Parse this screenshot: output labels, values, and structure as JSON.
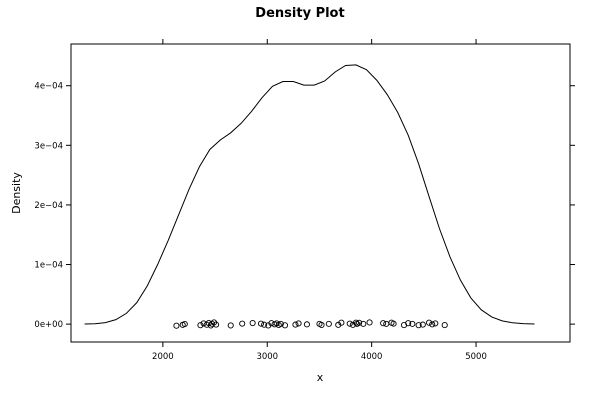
{
  "chart_data": {
    "type": "line",
    "title": "Density Plot",
    "xlabel": "x",
    "ylabel": "Density",
    "xlim": [
      1120,
      5900
    ],
    "ylim": [
      -3e-05,
      0.00047
    ],
    "grid": false,
    "legend": "none",
    "colors": {
      "line": "#000000",
      "points": "#000000",
      "frame": "#000000"
    },
    "x_ticks": [
      {
        "value": 2000,
        "label": "2000"
      },
      {
        "value": 3000,
        "label": "3000"
      },
      {
        "value": 4000,
        "label": "4000"
      },
      {
        "value": 5000,
        "label": "5000"
      }
    ],
    "y_ticks": [
      {
        "value": 0,
        "label": "0e+00"
      },
      {
        "value": 0.0001,
        "label": "1e−04"
      },
      {
        "value": 0.0002,
        "label": "2e−04"
      },
      {
        "value": 0.0003,
        "label": "3e−04"
      },
      {
        "value": 0.0004,
        "label": "4e−04"
      }
    ],
    "series": [
      {
        "kind": "density-curve",
        "x": [
          1250,
          1350,
          1450,
          1550,
          1650,
          1750,
          1850,
          1950,
          2050,
          2150,
          2250,
          2350,
          2450,
          2550,
          2650,
          2750,
          2850,
          2950,
          3050,
          3150,
          3250,
          3350,
          3450,
          3550,
          3650,
          3750,
          3850,
          3950,
          4050,
          4150,
          4250,
          4350,
          4450,
          4550,
          4650,
          4750,
          4850,
          4950,
          5050,
          5150,
          5250,
          5350,
          5450,
          5560
        ],
        "y": [
          3e-07,
          7e-07,
          2.5e-06,
          7.5e-06,
          1.8e-05,
          3.6e-05,
          6.4e-05,
          0.0001,
          0.00014,
          0.000183,
          0.000226,
          0.000264,
          0.000293,
          0.000309,
          0.000321,
          0.000337,
          0.000357,
          0.00038,
          0.000399,
          0.000407,
          0.000407,
          0.000401,
          0.000401,
          0.000408,
          0.000423,
          0.000434,
          0.000435,
          0.000427,
          0.000409,
          0.000385,
          0.000355,
          0.000317,
          0.000269,
          0.000214,
          0.00016,
          0.000113,
          7.4e-05,
          4.4e-05,
          2.4e-05,
          1.2e-05,
          5.5e-06,
          2.2e-06,
          8e-07,
          3e-07
        ]
      },
      {
        "kind": "rug-points",
        "x": [
          2130,
          2190,
          2210,
          2360,
          2390,
          2420,
          2440,
          2460,
          2470,
          2490,
          2510,
          2650,
          2760,
          2860,
          2940,
          2970,
          3010,
          3040,
          3070,
          3090,
          3110,
          3130,
          3170,
          3270,
          3300,
          3380,
          3500,
          3520,
          3590,
          3680,
          3710,
          3790,
          3820,
          3850,
          3860,
          3880,
          3920,
          3980,
          4110,
          4140,
          4190,
          4210,
          4310,
          4350,
          4390,
          4450,
          4490,
          4550,
          4580,
          4610,
          4700
        ],
        "y": [
          -2.6e-06,
          -1.2e-06,
          2e-07,
          -1.8e-06,
          1.2e-06,
          -1e-06,
          1.8e-06,
          -2.2e-06,
          6e-07,
          2.8e-06,
          -8e-07,
          -2.2e-06,
          8e-07,
          1.8e-06,
          8e-07,
          -1e-06,
          -2.2e-06,
          1.6e-06,
          -4e-07,
          1.2e-06,
          -1.4e-06,
          4e-07,
          -2e-06,
          -8e-07,
          1.2e-06,
          -4e-07,
          4e-07,
          -1.4e-06,
          4e-07,
          -1.2e-06,
          2.4e-06,
          8e-07,
          -1.2e-06,
          2.4e-06,
          4e-07,
          2.2e-06,
          4e-07,
          2.8e-06,
          1.6e-06,
          4e-07,
          2.4e-06,
          8e-07,
          -1.6e-06,
          1.6e-06,
          4e-07,
          -1.8e-06,
          -8e-07,
          2.4e-06,
          -4e-07,
          1.2e-06,
          -1.6e-06
        ]
      }
    ]
  }
}
